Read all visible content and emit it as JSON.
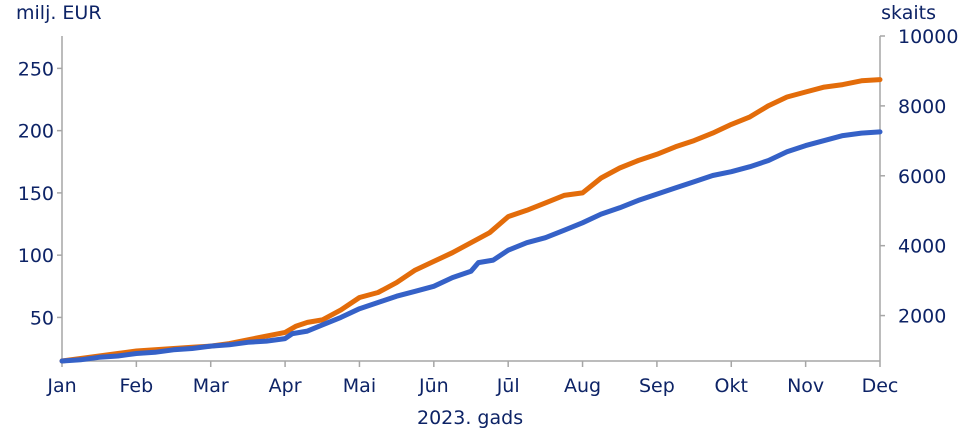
{
  "chart_data": {
    "type": "line",
    "x_categories": [
      "Jan",
      "Feb",
      "Mar",
      "Apr",
      "Mai",
      "Jūn",
      "Jūl",
      "Aug",
      "Sep",
      "Okt",
      "Nov",
      "Dec"
    ],
    "xlabel": "2023. gads",
    "left_axis": {
      "label": "milj. EUR",
      "ticks": [
        50,
        100,
        150,
        200,
        250
      ],
      "range": [
        15,
        276
      ]
    },
    "right_axis": {
      "label": "skaits",
      "ticks": [
        2000,
        4000,
        6000,
        8000,
        10000
      ],
      "range": [
        700,
        10000
      ]
    },
    "grid": false,
    "series": [
      {
        "axis": "left",
        "color": "#e36c0a",
        "points": [
          [
            0,
            15
          ],
          [
            0.25,
            17
          ],
          [
            0.5,
            19
          ],
          [
            0.75,
            21
          ],
          [
            1,
            23
          ],
          [
            1.25,
            24
          ],
          [
            1.5,
            25
          ],
          [
            1.75,
            26
          ],
          [
            2,
            27
          ],
          [
            2.25,
            29
          ],
          [
            2.5,
            32
          ],
          [
            2.75,
            35
          ],
          [
            3,
            38
          ],
          [
            3.15,
            43
          ],
          [
            3.3,
            46
          ],
          [
            3.5,
            48
          ],
          [
            3.75,
            56
          ],
          [
            4,
            66
          ],
          [
            4.25,
            70
          ],
          [
            4.5,
            78
          ],
          [
            4.75,
            88
          ],
          [
            5,
            95
          ],
          [
            5.25,
            102
          ],
          [
            5.5,
            110
          ],
          [
            5.75,
            118
          ],
          [
            6,
            131
          ],
          [
            6.25,
            136
          ],
          [
            6.5,
            142
          ],
          [
            6.75,
            148
          ],
          [
            7,
            150
          ],
          [
            7.25,
            162
          ],
          [
            7.5,
            170
          ],
          [
            7.75,
            176
          ],
          [
            8,
            181
          ],
          [
            8.25,
            187
          ],
          [
            8.5,
            192
          ],
          [
            8.75,
            198
          ],
          [
            9,
            205
          ],
          [
            9.25,
            211
          ],
          [
            9.5,
            220
          ],
          [
            9.75,
            227
          ],
          [
            10,
            231
          ],
          [
            10.25,
            235
          ],
          [
            10.5,
            237
          ],
          [
            10.75,
            240
          ],
          [
            11,
            241
          ]
        ]
      },
      {
        "axis": "left",
        "color": "#3561c7",
        "points": [
          [
            0,
            15
          ],
          [
            0.25,
            16
          ],
          [
            0.5,
            18
          ],
          [
            0.75,
            19
          ],
          [
            1,
            21
          ],
          [
            1.25,
            22
          ],
          [
            1.5,
            24
          ],
          [
            1.75,
            25
          ],
          [
            2,
            27
          ],
          [
            2.25,
            28
          ],
          [
            2.5,
            30
          ],
          [
            2.75,
            31
          ],
          [
            3,
            33
          ],
          [
            3.1,
            37
          ],
          [
            3.3,
            39
          ],
          [
            3.5,
            44
          ],
          [
            3.75,
            50
          ],
          [
            4,
            57
          ],
          [
            4.25,
            62
          ],
          [
            4.5,
            67
          ],
          [
            4.75,
            71
          ],
          [
            5,
            75
          ],
          [
            5.25,
            82
          ],
          [
            5.5,
            87
          ],
          [
            5.6,
            94
          ],
          [
            5.8,
            96
          ],
          [
            6,
            104
          ],
          [
            6.25,
            110
          ],
          [
            6.5,
            114
          ],
          [
            6.75,
            120
          ],
          [
            7,
            126
          ],
          [
            7.25,
            133
          ],
          [
            7.5,
            138
          ],
          [
            7.75,
            144
          ],
          [
            8,
            149
          ],
          [
            8.25,
            154
          ],
          [
            8.5,
            159
          ],
          [
            8.75,
            164
          ],
          [
            9,
            167
          ],
          [
            9.25,
            171
          ],
          [
            9.5,
            176
          ],
          [
            9.75,
            183
          ],
          [
            10,
            188
          ],
          [
            10.25,
            192
          ],
          [
            10.5,
            196
          ],
          [
            10.75,
            198
          ],
          [
            11,
            199
          ]
        ]
      }
    ]
  }
}
